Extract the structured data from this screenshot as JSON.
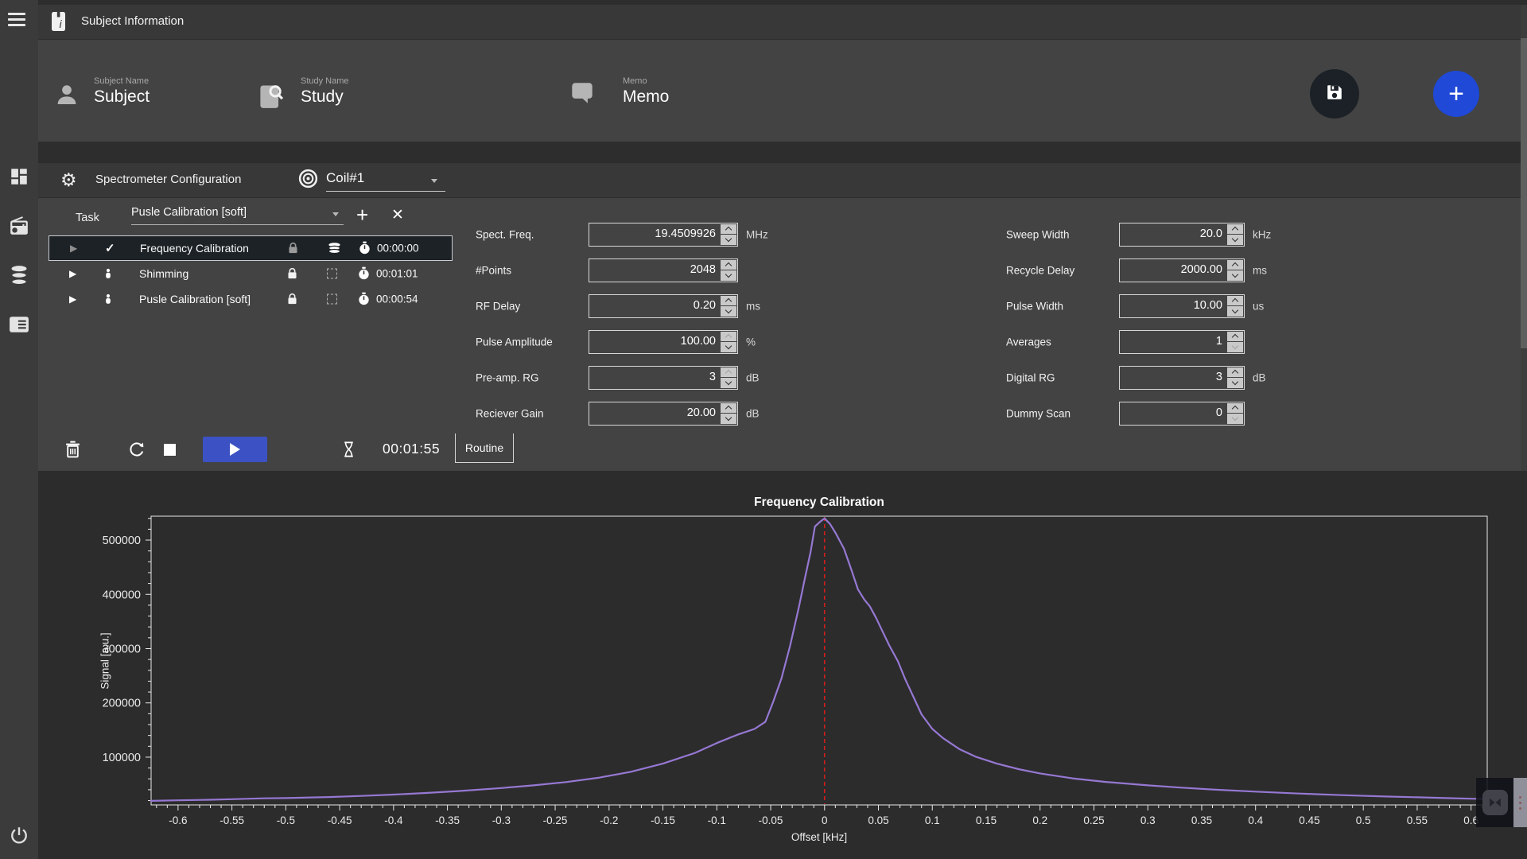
{
  "colors": {
    "accent_blue": "#1f49d6",
    "play_blue": "#3c52c4",
    "card": "#434343",
    "card_header": "#383838",
    "chart_bg": "#2c2c2c",
    "selected_row": "#1d2226",
    "line_purple": "#9678d3",
    "marker_red": "#e31b1b"
  },
  "sidebar": {
    "icons": [
      "menu-icon",
      "dashboard-icon",
      "scanner-icon",
      "database-icon",
      "news-icon",
      "power-icon"
    ]
  },
  "header": {
    "icon": "subject-info-icon",
    "title": "Subject Information"
  },
  "subject_bar": {
    "fields": [
      {
        "icon": "person-icon",
        "label": "Subject Name",
        "value": "Subject"
      },
      {
        "icon": "study-search-icon",
        "label": "Study Name",
        "value": "Study"
      },
      {
        "icon": "memo-bubble-icon",
        "label": "Memo",
        "value": "Memo"
      }
    ],
    "save_icon": "save-icon",
    "add_icon": "plus-icon",
    "add_label": "+"
  },
  "spectrometer": {
    "icon": "gear-icon",
    "title": "Spectrometer Configuration",
    "coil_select": {
      "icon": "coil-icon",
      "value": "Coil#1"
    },
    "task_label": "Task",
    "task_select": {
      "value": "Pusle Calibration [soft]"
    },
    "add_task_label": "+",
    "remove_task_label": "✕",
    "tasks": [
      {
        "name": "Frequency Calibration",
        "time": "00:00:00",
        "selected": true,
        "play_dimmed": true,
        "status_icon": "check-icon",
        "lock_dimmed": true,
        "queue_icon": "stack-icon"
      },
      {
        "name": "Shimming",
        "time": "00:01:01",
        "selected": false,
        "play_dimmed": false,
        "status_icon": "person-icon",
        "lock_dimmed": false,
        "queue_icon": "pending-box-icon"
      },
      {
        "name": "Pusle Calibration [soft]",
        "time": "00:00:54",
        "selected": false,
        "play_dimmed": false,
        "status_icon": "person-icon",
        "lock_dimmed": false,
        "queue_icon": "pending-box-icon"
      }
    ],
    "params_left": [
      {
        "label": "Spect. Freq.",
        "value": "19.4509926",
        "unit": "MHz",
        "up_dimmed": false,
        "down_dimmed": false
      },
      {
        "label": "#Points",
        "value": "2048",
        "unit": "",
        "up_dimmed": false,
        "down_dimmed": false
      },
      {
        "label": "RF Delay",
        "value": "0.20",
        "unit": "ms",
        "up_dimmed": false,
        "down_dimmed": false
      },
      {
        "label": "Pulse Amplitude",
        "value": "100.00",
        "unit": "%",
        "up_dimmed": true,
        "down_dimmed": false
      },
      {
        "label": "Pre-amp. RG",
        "value": "3",
        "unit": "dB",
        "up_dimmed": true,
        "down_dimmed": false
      },
      {
        "label": "Reciever Gain",
        "value": "20.00",
        "unit": "dB",
        "up_dimmed": false,
        "down_dimmed": false
      }
    ],
    "params_right": [
      {
        "label": "Sweep Width",
        "value": "20.0",
        "unit": "kHz",
        "up_dimmed": false,
        "down_dimmed": false
      },
      {
        "label": "Recycle Delay",
        "value": "2000.00",
        "unit": "ms",
        "up_dimmed": false,
        "down_dimmed": false
      },
      {
        "label": "Pulse Width",
        "value": "10.00",
        "unit": "us",
        "up_dimmed": false,
        "down_dimmed": false
      },
      {
        "label": "Averages",
        "value": "1",
        "unit": "",
        "up_dimmed": false,
        "down_dimmed": true
      },
      {
        "label": "Digital RG",
        "value": "3",
        "unit": "dB",
        "up_dimmed": false,
        "down_dimmed": false
      },
      {
        "label": "Dummy Scan",
        "value": "0",
        "unit": "",
        "up_dimmed": false,
        "down_dimmed": true
      }
    ],
    "controls": {
      "timer": "00:01:55",
      "tab_label": "Routine"
    }
  },
  "chart_data": {
    "type": "line",
    "title": "Frequency Calibration",
    "xlabel": "Offset [kHz]",
    "ylabel": "Signal [a.u.]",
    "xlim": [
      -0.625,
      0.615
    ],
    "ylim": [
      12000,
      544000
    ],
    "x_major_tick_step": 0.05,
    "x_minor_tick_step": 0.01,
    "y_major_ticks": [
      100000,
      200000,
      300000,
      400000,
      500000
    ],
    "y_minor_tick_step": 20000,
    "grid": false,
    "legend": false,
    "marker_line_x": 0,
    "marker_color": "#e31b1b",
    "series": [
      {
        "name": "Frequency Calibration signal",
        "color": "#9678d3",
        "points": [
          [
            -0.625,
            19500
          ],
          [
            -0.6,
            20500
          ],
          [
            -0.57,
            21500
          ],
          [
            -0.55,
            22500
          ],
          [
            -0.52,
            24200
          ],
          [
            -0.5,
            24600
          ],
          [
            -0.46,
            26500
          ],
          [
            -0.43,
            28500
          ],
          [
            -0.4,
            31000
          ],
          [
            -0.37,
            34000
          ],
          [
            -0.34,
            37500
          ],
          [
            -0.3,
            43000
          ],
          [
            -0.27,
            48000
          ],
          [
            -0.24,
            54000
          ],
          [
            -0.21,
            62000
          ],
          [
            -0.18,
            73000
          ],
          [
            -0.15,
            88000
          ],
          [
            -0.12,
            108000
          ],
          [
            -0.1,
            126000
          ],
          [
            -0.08,
            142000
          ],
          [
            -0.065,
            152000
          ],
          [
            -0.055,
            165000
          ],
          [
            -0.048,
            200000
          ],
          [
            -0.04,
            245000
          ],
          [
            -0.032,
            305000
          ],
          [
            -0.024,
            375000
          ],
          [
            -0.018,
            432000
          ],
          [
            -0.013,
            478000
          ],
          [
            -0.009,
            525000
          ],
          [
            -0.004,
            534000
          ],
          [
            0,
            540000
          ],
          [
            0.005,
            530000
          ],
          [
            0.01,
            514000
          ],
          [
            0.018,
            484000
          ],
          [
            0.025,
            445000
          ],
          [
            0.031,
            409000
          ],
          [
            0.037,
            390000
          ],
          [
            0.042,
            378000
          ],
          [
            0.048,
            356000
          ],
          [
            0.054,
            331000
          ],
          [
            0.06,
            306000
          ],
          [
            0.068,
            277000
          ],
          [
            0.075,
            243000
          ],
          [
            0.083,
            209000
          ],
          [
            0.09,
            179000
          ],
          [
            0.1,
            152000
          ],
          [
            0.11,
            135000
          ],
          [
            0.125,
            115000
          ],
          [
            0.14,
            101000
          ],
          [
            0.16,
            88000
          ],
          [
            0.18,
            78000
          ],
          [
            0.2,
            70000
          ],
          [
            0.23,
            61000
          ],
          [
            0.26,
            54500
          ],
          [
            0.3,
            48000
          ],
          [
            0.33,
            44000
          ],
          [
            0.36,
            40500
          ],
          [
            0.4,
            36500
          ],
          [
            0.44,
            33000
          ],
          [
            0.48,
            30000
          ],
          [
            0.52,
            27500
          ],
          [
            0.55,
            26000
          ],
          [
            0.58,
            24500
          ],
          [
            0.6,
            23500
          ],
          [
            0.615,
            23000
          ]
        ]
      }
    ]
  }
}
